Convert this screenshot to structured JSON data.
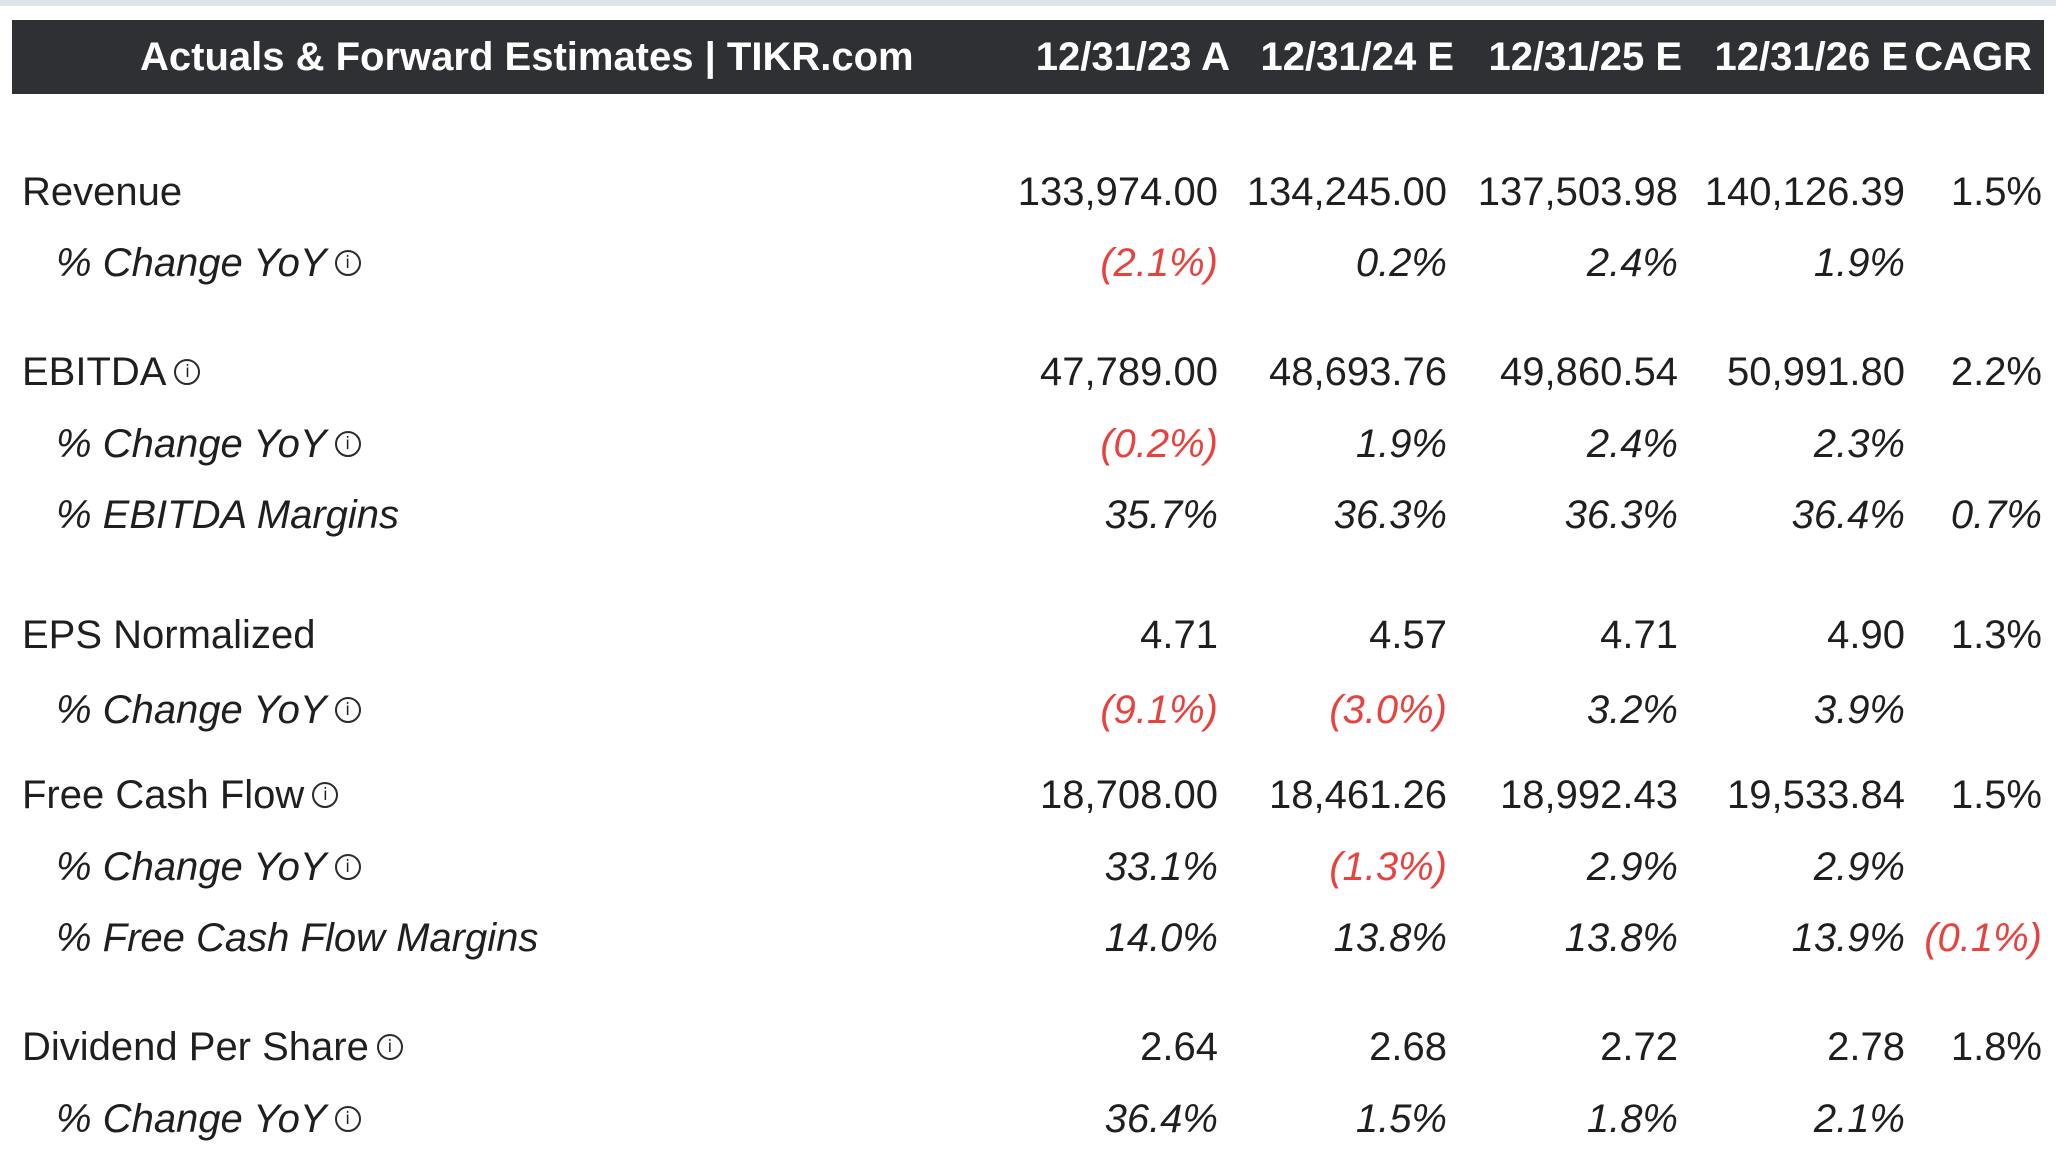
{
  "header": {
    "title": "Actuals & Forward Estimates | TIKR.com",
    "columns": [
      "12/31/23 A",
      "12/31/24 E",
      "12/31/25 E",
      "12/31/26 E",
      "CAGR"
    ]
  },
  "colors": {
    "header_bg": "#2f3033",
    "negative": "#e8423f",
    "text": "#1f1f1f"
  },
  "rows": [
    {
      "label": "Revenue",
      "values": [
        "133,974.00",
        "134,245.00",
        "137,503.98",
        "140,126.39",
        "1.5%"
      ]
    },
    {
      "label": "% Change YoY",
      "values": [
        "(2.1%)",
        "0.2%",
        "2.4%",
        "1.9%",
        ""
      ]
    },
    {
      "label": "EBITDA",
      "values": [
        "47,789.00",
        "48,693.76",
        "49,860.54",
        "50,991.80",
        "2.2%"
      ]
    },
    {
      "label": "% Change YoY",
      "values": [
        "(0.2%)",
        "1.9%",
        "2.4%",
        "2.3%",
        ""
      ]
    },
    {
      "label": "% EBITDA Margins",
      "values": [
        "35.7%",
        "36.3%",
        "36.3%",
        "36.4%",
        "0.7%"
      ]
    },
    {
      "label": "EPS Normalized",
      "values": [
        "4.71",
        "4.57",
        "4.71",
        "4.90",
        "1.3%"
      ]
    },
    {
      "label": "% Change YoY",
      "values": [
        "(9.1%)",
        "(3.0%)",
        "3.2%",
        "3.9%",
        ""
      ]
    },
    {
      "label": "Free Cash Flow",
      "values": [
        "18,708.00",
        "18,461.26",
        "18,992.43",
        "19,533.84",
        "1.5%"
      ]
    },
    {
      "label": "% Change YoY",
      "values": [
        "33.1%",
        "(1.3%)",
        "2.9%",
        "2.9%",
        ""
      ]
    },
    {
      "label": "% Free Cash Flow Margins",
      "values": [
        "14.0%",
        "13.8%",
        "13.8%",
        "13.9%",
        "(0.1%)"
      ]
    },
    {
      "label": "Dividend Per Share",
      "values": [
        "2.64",
        "2.68",
        "2.72",
        "2.78",
        "1.8%"
      ]
    },
    {
      "label": "% Change YoY",
      "values": [
        "36.4%",
        "1.5%",
        "1.8%",
        "2.1%",
        ""
      ]
    }
  ]
}
